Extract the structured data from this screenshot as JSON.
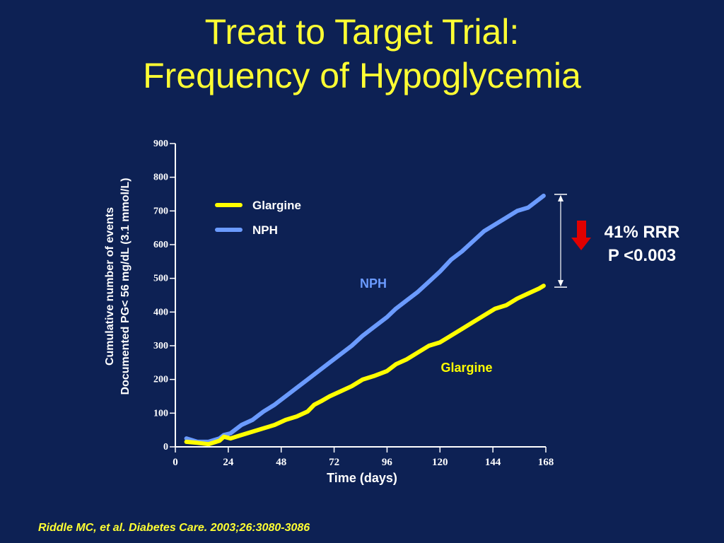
{
  "slide": {
    "title_line1": "Treat to Target Trial:",
    "title_line2": "Frequency of Hypoglycemia",
    "citation": "Riddle MC, et al. Diabetes Care. 2003;26:3080-3086",
    "rrr_label": "41% RRR",
    "p_value": "P <0.003"
  },
  "colors": {
    "background": "#0d2154",
    "title": "#ffff33",
    "glargine": "#ffff00",
    "nph": "#6b9bff",
    "arrow": "#e00000",
    "axis": "#ffffff"
  },
  "chart_data": {
    "type": "line",
    "title": "",
    "xlabel": "Time (days)",
    "ylabel_line1": "Cumulative number of events",
    "ylabel_line2": "Documented PG< 56 mg/dL (3.1 mmol/L)",
    "xlim": [
      0,
      168
    ],
    "ylim": [
      0,
      900
    ],
    "xticks": [
      0,
      24,
      48,
      72,
      96,
      120,
      144,
      168
    ],
    "yticks": [
      0,
      100,
      200,
      300,
      400,
      500,
      600,
      700,
      800,
      900
    ],
    "grid": false,
    "legend_position": "top-left",
    "series": [
      {
        "name": "Glargine",
        "color_key": "glargine",
        "inline_label": "Glargine",
        "x": [
          5,
          10,
          15,
          20,
          22,
          25,
          30,
          35,
          40,
          45,
          50,
          55,
          60,
          63,
          66,
          70,
          75,
          80,
          85,
          90,
          96,
          100,
          105,
          110,
          115,
          120,
          125,
          130,
          135,
          140,
          145,
          150,
          155,
          160,
          165,
          167
        ],
        "y": [
          15,
          12,
          8,
          18,
          30,
          25,
          35,
          45,
          55,
          65,
          80,
          90,
          105,
          125,
          135,
          150,
          165,
          180,
          200,
          210,
          225,
          245,
          260,
          280,
          300,
          310,
          330,
          350,
          370,
          390,
          410,
          420,
          440,
          455,
          470,
          478
        ]
      },
      {
        "name": "NPH",
        "color_key": "nph",
        "inline_label": "NPH",
        "x": [
          5,
          10,
          15,
          20,
          22,
          25,
          30,
          35,
          38,
          40,
          45,
          50,
          55,
          60,
          65,
          70,
          75,
          80,
          85,
          90,
          96,
          100,
          105,
          110,
          115,
          120,
          125,
          130,
          135,
          140,
          145,
          150,
          155,
          160,
          165,
          167
        ],
        "y": [
          25,
          15,
          15,
          25,
          35,
          40,
          65,
          80,
          95,
          105,
          125,
          150,
          175,
          200,
          225,
          250,
          275,
          300,
          330,
          355,
          385,
          410,
          435,
          460,
          490,
          520,
          555,
          580,
          610,
          640,
          660,
          680,
          700,
          710,
          735,
          745
        ]
      }
    ],
    "annotation": {
      "type": "bracket",
      "x": 168,
      "y_from": 478,
      "y_to": 745
    }
  }
}
